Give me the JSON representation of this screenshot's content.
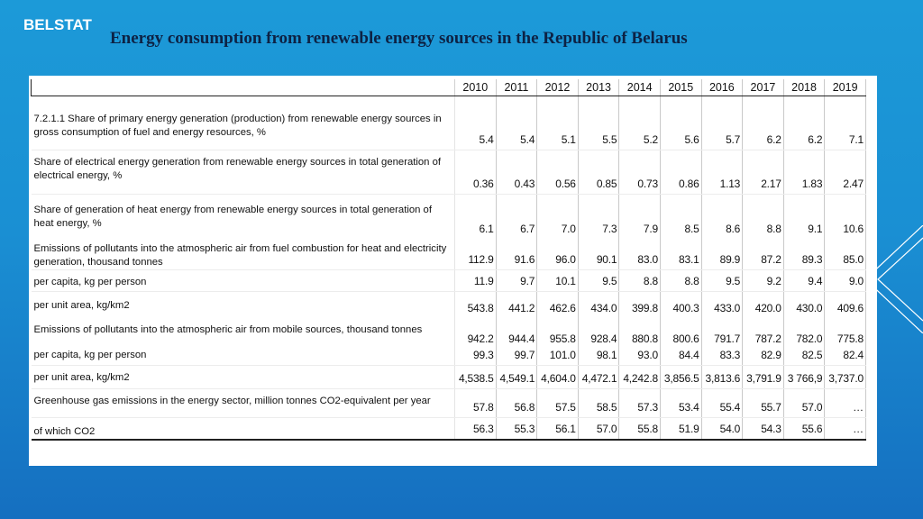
{
  "header": {
    "brand": "BELSTAT",
    "title": "Energy consumption from renewable energy sources in the Republic of Belarus"
  },
  "table": {
    "years": [
      "2010",
      "2011",
      "2012",
      "2013",
      "2014",
      "2015",
      "2016",
      "2017",
      "2018",
      "2019"
    ],
    "rows": [
      {
        "label": "7.2.1.1 Share of primary energy generation (production) from renewable energy sources in gross consumption of fuel and energy resources, %",
        "values": [
          "5.4",
          "5.4",
          "5.1",
          "5.5",
          "5.2",
          "5.6",
          "5.7",
          "6.2",
          "6.2",
          "7.1"
        ]
      },
      {
        "label": "Share of electrical energy generation from renewable energy sources in total generation of electrical energy, %",
        "values": [
          "0.36",
          "0.43",
          "0.56",
          "0.85",
          "0.73",
          "0.86",
          "1.13",
          "2.17",
          "1.83",
          "2.47"
        ]
      },
      {
        "label": "Share of generation of heat energy from renewable energy sources in total generation of heat energy, %",
        "values": [
          "6.1",
          "6.7",
          "7.0",
          "7.3",
          "7.9",
          "8.5",
          "8.6",
          "8.8",
          "9.1",
          "10.6"
        ]
      },
      {
        "label": "Emissions of pollutants into the atmospheric air from fuel combustion for heat and electricity generation, thousand tonnes",
        "values": [
          "112.9",
          "91.6",
          "96.0",
          "90.1",
          "83.0",
          "83.1",
          "89.9",
          "87.2",
          "89.3",
          "85.0"
        ]
      },
      {
        "label": "per capita, kg per person",
        "values": [
          "11.9",
          "9.7",
          "10.1",
          "9.5",
          "8.8",
          "8.8",
          "9.5",
          "9.2",
          "9.4",
          "9.0"
        ]
      },
      {
        "label": "per unit area, kg/km2",
        "values": [
          "543.8",
          "441.2",
          "462.6",
          "434.0",
          "399.8",
          "400.3",
          "433.0",
          "420.0",
          "430.0",
          "409.6"
        ]
      },
      {
        "label": "Emissions of pollutants into the atmospheric air from mobile sources, thousand tonnes",
        "values": [
          "942.2",
          "944.4",
          "955.8",
          "928.4",
          "880.8",
          "800.6",
          "791.7",
          "787.2",
          "782.0",
          "775.8"
        ]
      },
      {
        "label": "per capita, kg per person",
        "values": [
          "99.3",
          "99.7",
          "101.0",
          "98.1",
          "93.0",
          "84.4",
          "83.3",
          "82.9",
          "82.5",
          "82.4"
        ]
      },
      {
        "label": "per unit area, kg/km2",
        "values": [
          "4,538.5",
          "4,549.1",
          "4,604.0",
          "4,472.1",
          "4,242.8",
          "3,856.5",
          "3,813.6",
          "3,791.9",
          "3 766,9",
          "3,737.0"
        ]
      },
      {
        "label": "Greenhouse gas emissions in the energy sector, million tonnes CO2-equivalent per year",
        "values": [
          "57.8",
          "56.8",
          "57.5",
          "58.5",
          "57.3",
          "53.4",
          "55.4",
          "55.7",
          "57.0",
          "…"
        ]
      },
      {
        "label": "of which CO2",
        "values": [
          "56.3",
          "55.3",
          "56.1",
          "57.0",
          "55.8",
          "51.9",
          "54.0",
          "54.3",
          "55.6",
          "…"
        ]
      }
    ]
  }
}
